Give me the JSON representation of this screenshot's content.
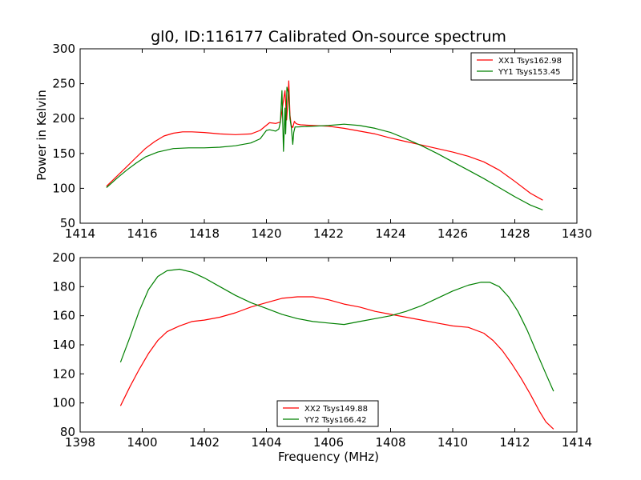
{
  "figure": {
    "title": "gl0, ID:116177 Calibrated On-source spectrum",
    "xlabel": "Frequency (MHz)",
    "ylabel_top": "Power in Kelvin"
  },
  "colors": {
    "red": "#ff0000",
    "green": "#008000"
  },
  "chart_data": [
    {
      "type": "line",
      "title": "gl0, ID:116177 Calibrated On-source spectrum",
      "xlabel": "",
      "ylabel": "Power in Kelvin",
      "xlim": [
        1414,
        1430
      ],
      "ylim": [
        50,
        300
      ],
      "xticks": [
        1414,
        1416,
        1418,
        1420,
        1422,
        1424,
        1426,
        1428,
        1430
      ],
      "yticks": [
        50,
        100,
        150,
        200,
        250,
        300
      ],
      "legend": "top-right",
      "grid": false,
      "series": [
        {
          "name": "XX1 Tsys162.98",
          "color": "#ff0000",
          "x": [
            1414.85,
            1415.2,
            1415.5,
            1415.8,
            1416.1,
            1416.4,
            1416.7,
            1417.0,
            1417.3,
            1417.6,
            1418.0,
            1418.5,
            1419.0,
            1419.5,
            1419.8,
            1420.1,
            1420.3,
            1420.45,
            1420.55,
            1420.6,
            1420.65,
            1420.7,
            1420.72,
            1420.76,
            1420.8,
            1420.85,
            1420.9,
            1420.95,
            1421.0,
            1421.1,
            1421.5,
            1422.0,
            1422.5,
            1423.0,
            1423.5,
            1424.0,
            1424.5,
            1425.0,
            1425.5,
            1426.0,
            1426.5,
            1427.0,
            1427.5,
            1428.0,
            1428.5,
            1428.9
          ],
          "y": [
            103,
            118,
            131,
            144,
            157,
            167,
            175,
            179,
            181,
            181,
            180,
            178,
            177,
            178,
            183,
            194,
            193,
            195,
            226,
            240,
            198,
            230,
            254,
            205,
            190,
            187,
            196,
            193,
            192,
            191,
            190,
            189,
            186,
            182,
            178,
            172,
            167,
            162,
            157,
            152,
            146,
            138,
            126,
            110,
            93,
            83
          ]
        },
        {
          "name": "YY1 Tsys153.45",
          "color": "#008000",
          "x": [
            1414.85,
            1415.2,
            1415.5,
            1415.8,
            1416.1,
            1416.5,
            1417.0,
            1417.5,
            1418.0,
            1418.5,
            1419.0,
            1419.5,
            1419.8,
            1420.0,
            1420.1,
            1420.3,
            1420.4,
            1420.45,
            1420.5,
            1420.55,
            1420.6,
            1420.62,
            1420.66,
            1420.72,
            1420.76,
            1420.8,
            1420.85,
            1420.88,
            1420.92,
            1421.0,
            1421.5,
            1422.0,
            1422.5,
            1423.0,
            1423.5,
            1424.0,
            1424.5,
            1425.0,
            1425.5,
            1426.0,
            1426.5,
            1427.0,
            1427.5,
            1428.0,
            1428.5,
            1428.9
          ],
          "y": [
            101,
            115,
            126,
            136,
            145,
            152,
            157,
            158,
            158,
            159,
            161,
            165,
            171,
            183,
            184,
            182,
            185,
            195,
            240,
            153,
            215,
            178,
            245,
            235,
            200,
            188,
            163,
            180,
            188,
            188,
            189,
            190,
            192,
            190,
            186,
            180,
            171,
            161,
            150,
            138,
            126,
            114,
            101,
            88,
            76,
            69
          ]
        }
      ]
    },
    {
      "type": "line",
      "title": "",
      "xlabel": "Frequency (MHz)",
      "ylabel": "",
      "xlim": [
        1398,
        1414
      ],
      "ylim": [
        80,
        200
      ],
      "xticks": [
        1398,
        1400,
        1402,
        1404,
        1406,
        1408,
        1410,
        1412,
        1414
      ],
      "yticks": [
        80,
        100,
        120,
        140,
        160,
        180,
        200
      ],
      "legend": "bottom-center",
      "grid": false,
      "series": [
        {
          "name": "XX2 Tsys149.88",
          "color": "#ff0000",
          "x": [
            1399.3,
            1399.6,
            1399.9,
            1400.2,
            1400.5,
            1400.8,
            1401.2,
            1401.6,
            1402.0,
            1402.5,
            1403.0,
            1403.5,
            1404.0,
            1404.5,
            1405.0,
            1405.5,
            1406.0,
            1406.5,
            1407.0,
            1407.5,
            1408.0,
            1408.5,
            1409.0,
            1409.5,
            1410.0,
            1410.5,
            1411.0,
            1411.3,
            1411.6,
            1411.9,
            1412.2,
            1412.5,
            1412.8,
            1413.0,
            1413.25
          ],
          "y": [
            98,
            111,
            123,
            134,
            143,
            149,
            153,
            156,
            157,
            159,
            162,
            166,
            169,
            172,
            173,
            173,
            171,
            168,
            166,
            163,
            161,
            159,
            157,
            155,
            153,
            152,
            148,
            143,
            136,
            127,
            117,
            106,
            94,
            87,
            82
          ]
        },
        {
          "name": "YY2 Tsys166.42",
          "color": "#008000",
          "x": [
            1399.3,
            1399.6,
            1399.9,
            1400.2,
            1400.5,
            1400.8,
            1401.2,
            1401.6,
            1402.0,
            1402.5,
            1403.0,
            1403.5,
            1404.0,
            1404.5,
            1405.0,
            1405.5,
            1406.0,
            1406.5,
            1407.0,
            1407.5,
            1408.0,
            1408.5,
            1409.0,
            1409.5,
            1410.0,
            1410.5,
            1410.9,
            1411.2,
            1411.5,
            1411.8,
            1412.1,
            1412.4,
            1412.7,
            1413.0,
            1413.25
          ],
          "y": [
            128,
            145,
            163,
            178,
            187,
            191,
            192,
            190,
            186,
            180,
            174,
            169,
            165,
            161,
            158,
            156,
            155,
            154,
            156,
            158,
            160,
            163,
            167,
            172,
            177,
            181,
            183,
            183,
            180,
            173,
            163,
            150,
            135,
            120,
            108
          ]
        }
      ]
    }
  ]
}
